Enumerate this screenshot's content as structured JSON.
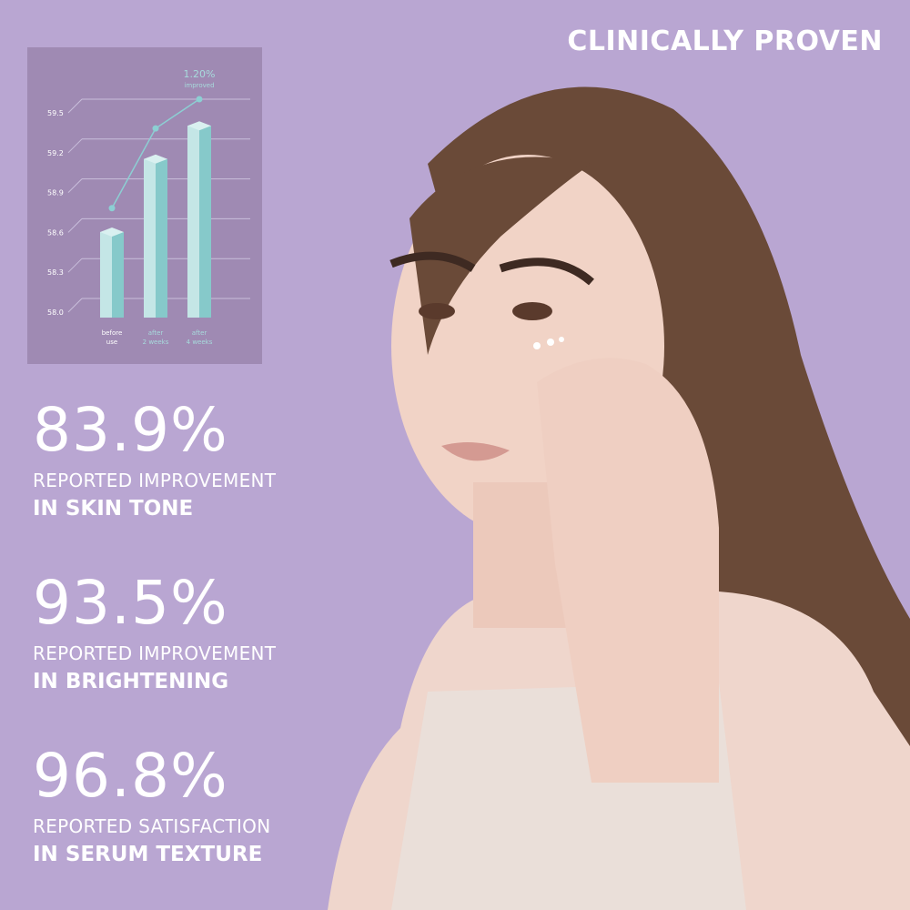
{
  "headline": "CLINICALLY PROVEN",
  "chart_data": {
    "type": "bar",
    "categories": [
      "before use",
      "after 2 weeks",
      "after 4 weeks"
    ],
    "values": [
      58.5,
      59.05,
      59.3
    ],
    "line_values": [
      58.68,
      59.28,
      59.5
    ],
    "yticks": [
      "58.0",
      "58.3",
      "58.6",
      "58.9",
      "59.2",
      "59.5"
    ],
    "ylim": [
      58.0,
      59.5
    ],
    "annotation_value": "1.20%",
    "annotation_text": "improved",
    "grid": true,
    "colors": {
      "bar": "#8fd0d0",
      "line": "#8ccfd3",
      "panel": "#9f8ab3"
    }
  },
  "stats": [
    {
      "value": "83.9%",
      "line1": "REPORTED IMPROVEMENT",
      "line2": "IN SKIN TONE"
    },
    {
      "value": "93.5%",
      "line1": "REPORTED IMPROVEMENT",
      "line2": "IN BRIGHTENING"
    },
    {
      "value": "96.8%",
      "line1": "REPORTED SATISFACTION",
      "line2": "IN SERUM TEXTURE"
    }
  ]
}
